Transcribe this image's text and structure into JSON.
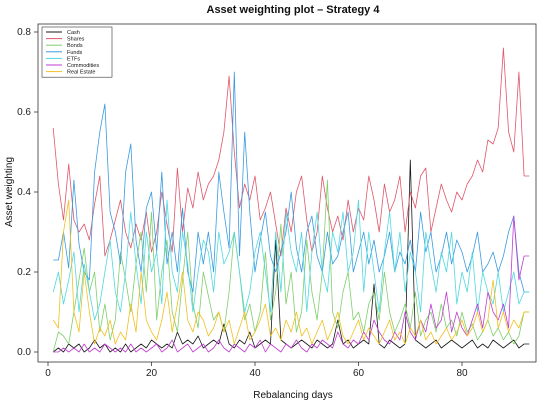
{
  "chart_data": {
    "type": "line",
    "title": "Asset weighting plot – Strategy 4",
    "xlabel": "Rebalancing days",
    "ylabel": "Asset weighting",
    "xlim": [
      0,
      94
    ],
    "ylim": [
      0,
      0.8
    ],
    "x_ticks": [
      0,
      20,
      40,
      60,
      80
    ],
    "x_tick_labels": [
      "0",
      "20",
      "40",
      "60",
      "80"
    ],
    "y_ticks": [
      0.0,
      0.2,
      0.4,
      0.6,
      0.8
    ],
    "y_tick_labels": [
      "0.0",
      "0.2",
      "0.4",
      "0.6",
      "0.8"
    ],
    "grid": false,
    "legend_position": "top-left",
    "x": [
      1,
      2,
      3,
      4,
      5,
      6,
      7,
      8,
      9,
      10,
      11,
      12,
      13,
      14,
      15,
      16,
      17,
      18,
      19,
      20,
      21,
      22,
      23,
      24,
      25,
      26,
      27,
      28,
      29,
      30,
      31,
      32,
      33,
      34,
      35,
      36,
      37,
      38,
      39,
      40,
      41,
      42,
      43,
      44,
      45,
      46,
      47,
      48,
      49,
      50,
      51,
      52,
      53,
      54,
      55,
      56,
      57,
      58,
      59,
      60,
      61,
      62,
      63,
      64,
      65,
      66,
      67,
      68,
      69,
      70,
      71,
      72,
      73,
      74,
      75,
      76,
      77,
      78,
      79,
      80,
      81,
      82,
      83,
      84,
      85,
      86,
      87,
      88,
      89,
      90,
      91,
      92,
      93
    ],
    "series": [
      {
        "name": "Cash",
        "color": "#1a1a1a",
        "values": [
          0.0,
          0.01,
          0.0,
          0.02,
          0.01,
          0.02,
          0.0,
          0.01,
          0.03,
          0.01,
          0.02,
          0.0,
          0.01,
          0.0,
          0.02,
          0.0,
          0.01,
          0.02,
          0.01,
          0.03,
          0.02,
          0.01,
          0.02,
          0.01,
          0.05,
          0.02,
          0.03,
          0.02,
          0.04,
          0.01,
          0.02,
          0.03,
          0.02,
          0.07,
          0.02,
          0.01,
          0.03,
          0.02,
          0.05,
          0.01,
          0.02,
          0.03,
          0.02,
          0.28,
          0.03,
          0.02,
          0.01,
          0.02,
          0.03,
          0.02,
          0.01,
          0.03,
          0.02,
          0.01,
          0.02,
          0.08,
          0.02,
          0.03,
          0.01,
          0.02,
          0.03,
          0.02,
          0.17,
          0.02,
          0.01,
          0.03,
          0.02,
          0.01,
          0.02,
          0.48,
          0.03,
          0.02,
          0.01,
          0.02,
          0.03,
          0.01,
          0.02,
          0.03,
          0.02,
          0.01,
          0.02,
          0.03,
          0.01,
          0.02,
          0.01,
          0.03,
          0.02,
          0.01,
          0.02,
          0.03,
          0.01,
          0.02,
          0.02
        ]
      },
      {
        "name": "Shares",
        "color": "#e0566b",
        "values": [
          0.56,
          0.42,
          0.33,
          0.47,
          0.33,
          0.3,
          0.32,
          0.28,
          0.37,
          0.44,
          0.24,
          0.28,
          0.33,
          0.38,
          0.3,
          0.26,
          0.32,
          0.28,
          0.35,
          0.25,
          0.3,
          0.4,
          0.32,
          0.25,
          0.46,
          0.3,
          0.41,
          0.36,
          0.45,
          0.38,
          0.42,
          0.44,
          0.48,
          0.55,
          0.69,
          0.5,
          0.36,
          0.42,
          0.38,
          0.44,
          0.33,
          0.36,
          0.4,
          0.32,
          0.24,
          0.36,
          0.3,
          0.4,
          0.44,
          0.33,
          0.25,
          0.3,
          0.44,
          0.36,
          0.3,
          0.34,
          0.28,
          0.38,
          0.3,
          0.36,
          0.33,
          0.44,
          0.38,
          0.3,
          0.42,
          0.35,
          0.38,
          0.44,
          0.3,
          0.4,
          0.36,
          0.44,
          0.46,
          0.3,
          0.36,
          0.42,
          0.38,
          0.35,
          0.4,
          0.38,
          0.42,
          0.44,
          0.48,
          0.45,
          0.53,
          0.52,
          0.56,
          0.76,
          0.55,
          0.5,
          0.7,
          0.44,
          0.44
        ]
      },
      {
        "name": "Bonds",
        "color": "#7fcf6b",
        "values": [
          0.0,
          0.05,
          0.04,
          0.02,
          0.1,
          0.18,
          0.26,
          0.15,
          0.2,
          0.05,
          0.12,
          0.03,
          0.08,
          0.25,
          0.18,
          0.1,
          0.22,
          0.3,
          0.15,
          0.35,
          0.08,
          0.2,
          0.28,
          0.1,
          0.05,
          0.18,
          0.3,
          0.12,
          0.06,
          0.2,
          0.14,
          0.08,
          0.1,
          0.05,
          0.15,
          0.3,
          0.2,
          0.08,
          0.12,
          0.05,
          0.1,
          0.25,
          0.08,
          0.15,
          0.32,
          0.12,
          0.2,
          0.05,
          0.1,
          0.28,
          0.15,
          0.08,
          0.2,
          0.43,
          0.1,
          0.06,
          0.15,
          0.2,
          0.08,
          0.1,
          0.05,
          0.12,
          0.15,
          0.08,
          0.2,
          0.1,
          0.05,
          0.08,
          0.12,
          0.06,
          0.15,
          0.04,
          0.08,
          0.1,
          0.05,
          0.12,
          0.06,
          0.08,
          0.04,
          0.1,
          0.05,
          0.07,
          0.03,
          0.05,
          0.08,
          0.04,
          0.06,
          0.03,
          0.05,
          0.02,
          0.04,
          0.1,
          0.1
        ]
      },
      {
        "name": "Funds",
        "color": "#3a9be0",
        "values": [
          0.23,
          0.23,
          0.3,
          0.21,
          0.43,
          0.27,
          0.2,
          0.18,
          0.45,
          0.55,
          0.62,
          0.35,
          0.3,
          0.22,
          0.45,
          0.52,
          0.28,
          0.2,
          0.36,
          0.4,
          0.25,
          0.45,
          0.22,
          0.3,
          0.2,
          0.36,
          0.2,
          0.15,
          0.3,
          0.22,
          0.3,
          0.2,
          0.45,
          0.35,
          0.26,
          0.7,
          0.24,
          0.55,
          0.35,
          0.2,
          0.28,
          0.35,
          0.24,
          0.2,
          0.25,
          0.3,
          0.4,
          0.26,
          0.2,
          0.3,
          0.34,
          0.24,
          0.2,
          0.3,
          0.22,
          0.24,
          0.3,
          0.35,
          0.2,
          0.25,
          0.3,
          0.22,
          0.28,
          0.2,
          0.24,
          0.3,
          0.2,
          0.25,
          0.22,
          0.28,
          0.2,
          0.35,
          0.25,
          0.3,
          0.2,
          0.24,
          0.3,
          0.22,
          0.28,
          0.25,
          0.2,
          0.24,
          0.3,
          0.2,
          0.22,
          0.25,
          0.2,
          0.24,
          0.3,
          0.34,
          0.2,
          0.15,
          0.15
        ]
      },
      {
        "name": "ETFs",
        "color": "#4fd8e0",
        "values": [
          0.15,
          0.2,
          0.12,
          0.18,
          0.25,
          0.1,
          0.22,
          0.15,
          0.08,
          0.12,
          0.2,
          0.28,
          0.15,
          0.1,
          0.2,
          0.35,
          0.22,
          0.12,
          0.3,
          0.2,
          0.25,
          0.12,
          0.38,
          0.2,
          0.15,
          0.3,
          0.22,
          0.1,
          0.2,
          0.28,
          0.25,
          0.15,
          0.3,
          0.22,
          0.25,
          0.3,
          0.2,
          0.1,
          0.15,
          0.25,
          0.3,
          0.2,
          0.1,
          0.3,
          0.15,
          0.35,
          0.25,
          0.2,
          0.3,
          0.1,
          0.25,
          0.35,
          0.2,
          0.15,
          0.3,
          0.25,
          0.35,
          0.2,
          0.25,
          0.38,
          0.15,
          0.3,
          0.2,
          0.1,
          0.25,
          0.35,
          0.2,
          0.3,
          0.15,
          0.25,
          0.2,
          0.1,
          0.3,
          0.22,
          0.15,
          0.25,
          0.2,
          0.3,
          0.12,
          0.2,
          0.15,
          0.25,
          0.1,
          0.2,
          0.15,
          0.12,
          0.2,
          0.1,
          0.15,
          0.2,
          0.12,
          0.15,
          0.15
        ]
      },
      {
        "name": "Commodities",
        "color": "#c03ed0",
        "values": [
          0.0,
          0.0,
          0.01,
          0.0,
          0.01,
          0.0,
          0.02,
          0.0,
          0.01,
          0.0,
          0.02,
          0.01,
          0.0,
          0.01,
          0.0,
          0.02,
          0.0,
          0.01,
          0.0,
          0.01,
          0.02,
          0.0,
          0.01,
          0.03,
          0.0,
          0.01,
          0.02,
          0.0,
          0.01,
          0.02,
          0.0,
          0.01,
          0.03,
          0.01,
          0.0,
          0.02,
          0.01,
          0.0,
          0.02,
          0.01,
          0.03,
          0.0,
          0.02,
          0.01,
          0.0,
          0.02,
          0.01,
          0.03,
          0.01,
          0.0,
          0.02,
          0.01,
          0.03,
          0.02,
          0.01,
          0.05,
          0.02,
          0.01,
          0.03,
          0.02,
          0.05,
          0.03,
          0.08,
          0.05,
          0.03,
          0.02,
          0.05,
          0.03,
          0.1,
          0.05,
          0.03,
          0.08,
          0.05,
          0.12,
          0.06,
          0.08,
          0.15,
          0.05,
          0.1,
          0.06,
          0.04,
          0.08,
          0.12,
          0.06,
          0.15,
          0.1,
          0.08,
          0.12,
          0.06,
          0.34,
          0.18,
          0.24,
          0.24
        ]
      },
      {
        "name": "Real Estate",
        "color": "#f0c020",
        "values": [
          0.08,
          0.06,
          0.3,
          0.38,
          0.1,
          0.05,
          0.2,
          0.1,
          0.02,
          0.06,
          0.04,
          0.08,
          0.02,
          0.05,
          0.03,
          0.12,
          0.05,
          0.2,
          0.08,
          0.05,
          0.03,
          0.08,
          0.15,
          0.05,
          0.12,
          0.2,
          0.08,
          0.05,
          0.1,
          0.08,
          0.04,
          0.06,
          0.1,
          0.05,
          0.08,
          0.02,
          0.06,
          0.1,
          0.03,
          0.05,
          0.08,
          0.12,
          0.04,
          0.06,
          0.03,
          0.08,
          0.05,
          0.1,
          0.04,
          0.06,
          0.02,
          0.05,
          0.08,
          0.03,
          0.06,
          0.1,
          0.04,
          0.02,
          0.05,
          0.08,
          0.03,
          0.06,
          0.04,
          0.02,
          0.05,
          0.08,
          0.03,
          0.05,
          0.02,
          0.06,
          0.04,
          0.08,
          0.03,
          0.05,
          0.02,
          0.04,
          0.06,
          0.03,
          0.05,
          0.08,
          0.04,
          0.06,
          0.1,
          0.05,
          0.08,
          0.18,
          0.06,
          0.1,
          0.05,
          0.08,
          0.06,
          0.1,
          0.1
        ]
      }
    ]
  }
}
